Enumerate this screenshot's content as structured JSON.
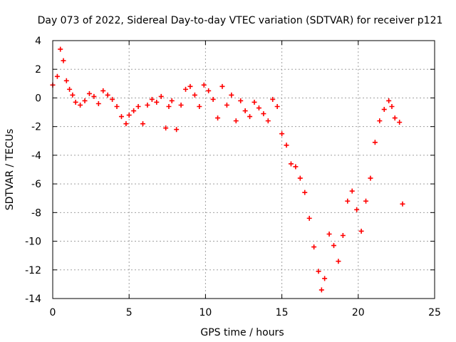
{
  "chart_data": {
    "type": "scatter",
    "title": "Day 073 of 2022, Sidereal Day-to-day VTEC variation (SDTVAR) for receiver p121",
    "xlabel": "GPS time / hours",
    "ylabel": "SDTVAR / TECUs",
    "xlim": [
      0,
      25
    ],
    "ylim": [
      -14,
      4
    ],
    "xticks": [
      0,
      5,
      10,
      15,
      20,
      25
    ],
    "yticks": [
      -14,
      -12,
      -10,
      -8,
      -6,
      -4,
      -2,
      0,
      2,
      4
    ],
    "grid": true,
    "marker": "+",
    "color": "#ff0000",
    "series": [
      {
        "name": "p121",
        "x": [
          0.0,
          0.3,
          0.5,
          0.7,
          0.9,
          1.1,
          1.3,
          1.5,
          1.8,
          2.1,
          2.4,
          2.7,
          3.0,
          3.3,
          3.6,
          3.9,
          4.2,
          4.5,
          4.8,
          5.0,
          5.3,
          5.6,
          5.9,
          6.2,
          6.5,
          6.8,
          7.1,
          7.4,
          7.6,
          7.8,
          8.1,
          8.4,
          8.7,
          9.0,
          9.3,
          9.6,
          9.9,
          10.2,
          10.5,
          10.8,
          11.1,
          11.4,
          11.7,
          12.0,
          12.3,
          12.6,
          12.9,
          13.2,
          13.5,
          13.8,
          14.1,
          14.4,
          14.7,
          15.0,
          15.3,
          15.6,
          15.9,
          16.2,
          16.5,
          16.8,
          17.1,
          17.4,
          17.6,
          17.8,
          18.1,
          18.4,
          18.7,
          19.0,
          19.3,
          19.6,
          19.9,
          20.2,
          20.5,
          20.8,
          21.1,
          21.4,
          21.7,
          22.0,
          22.2,
          22.4,
          22.7,
          22.9
        ],
        "y": [
          0.9,
          1.5,
          3.4,
          2.6,
          1.2,
          0.6,
          0.2,
          -0.3,
          -0.5,
          -0.2,
          0.3,
          0.1,
          -0.4,
          0.5,
          0.2,
          -0.1,
          -0.6,
          -1.3,
          -1.8,
          -1.2,
          -0.9,
          -0.6,
          -1.8,
          -0.5,
          -0.1,
          -0.3,
          0.1,
          -2.1,
          -0.6,
          -0.2,
          -2.2,
          -0.5,
          0.6,
          0.8,
          0.2,
          -0.6,
          0.9,
          0.5,
          -0.1,
          -1.4,
          0.8,
          -0.5,
          0.2,
          -1.6,
          -0.2,
          -0.9,
          -1.3,
          -0.3,
          -0.7,
          -1.1,
          -1.6,
          -0.1,
          -0.6,
          -2.5,
          -3.3,
          -4.6,
          -4.8,
          -5.6,
          -6.6,
          -8.4,
          -10.4,
          -12.1,
          -13.4,
          -12.6,
          -9.5,
          -10.3,
          -11.4,
          -9.6,
          -7.2,
          -6.5,
          -7.8,
          -9.3,
          -7.2,
          -5.6,
          -3.1,
          -1.6,
          -0.8,
          -0.2,
          -0.6,
          -1.4,
          -1.7,
          -7.4
        ]
      }
    ]
  }
}
